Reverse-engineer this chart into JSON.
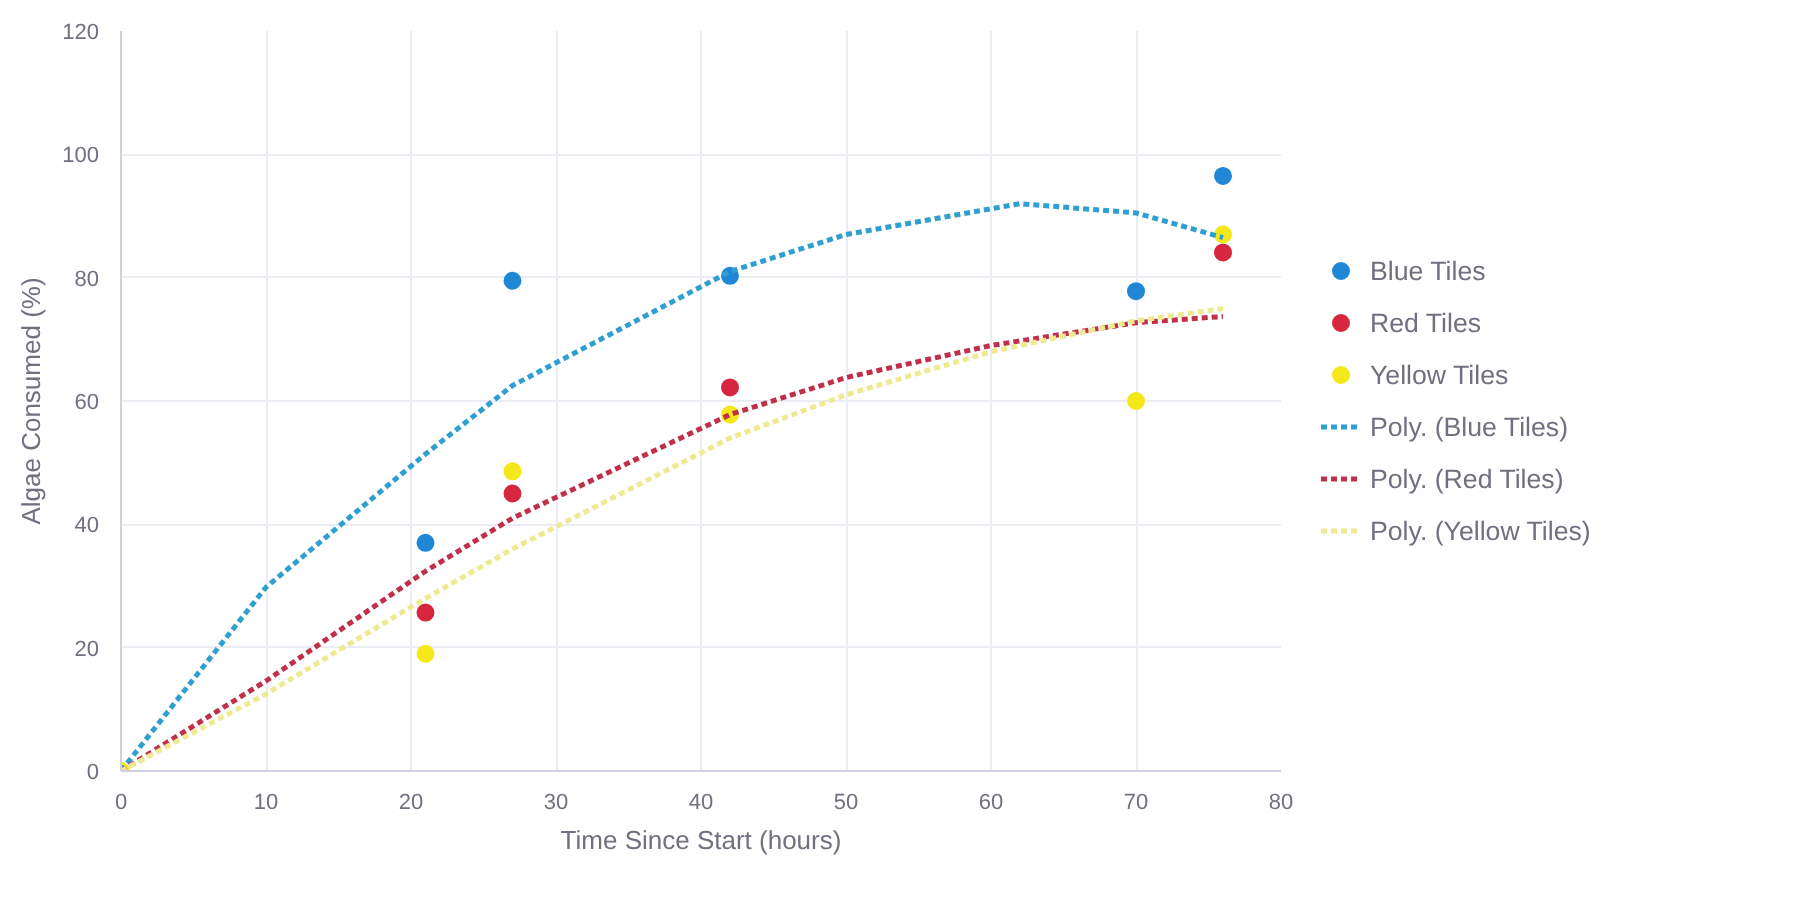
{
  "chart_data": {
    "type": "scatter",
    "xlabel": "Time Since Start (hours)",
    "ylabel": "Algae Consumed (%)",
    "xlim": [
      0,
      80
    ],
    "ylim": [
      0,
      120
    ],
    "xticks": [
      0,
      10,
      20,
      30,
      40,
      50,
      60,
      70,
      80
    ],
    "yticks": [
      0,
      20,
      40,
      60,
      80,
      100,
      120
    ],
    "grid": true,
    "legend": "right",
    "x": [
      0,
      21,
      27,
      42,
      70,
      76
    ],
    "series": [
      {
        "name": "Blue Tiles",
        "marker": "circle",
        "color": "#1f87d6",
        "values": [
          null,
          37,
          79.5,
          80.3,
          77.8,
          96.5
        ]
      },
      {
        "name": "Red Tiles",
        "marker": "circle",
        "color": "#d6273f",
        "values": [
          null,
          25.7,
          45,
          62.2,
          null,
          84.1
        ]
      },
      {
        "name": "Yellow Tiles",
        "marker": "circle",
        "color": "#f5e81a",
        "values": [
          0,
          19,
          48.6,
          57.8,
          60,
          87
        ]
      },
      {
        "name": "Poly. (Blue Tiles)",
        "type": "line",
        "line_style": "dotted",
        "color": "#2e9fd0",
        "x": [
          0,
          10,
          21,
          27,
          42,
          50,
          62,
          70,
          76
        ],
        "values": [
          0,
          29.8,
          51.4,
          62.5,
          81,
          87,
          92,
          90.5,
          86.5
        ]
      },
      {
        "name": "Poly. (Red Tiles)",
        "type": "line",
        "line_style": "dotted",
        "color": "#c0304a",
        "x": [
          0,
          10,
          21,
          27,
          42,
          50,
          60,
          70,
          76
        ],
        "values": [
          0,
          14.6,
          32.4,
          41,
          57.8,
          63.8,
          69,
          72.7,
          73.7
        ]
      },
      {
        "name": "Poly. (Yellow Tiles)",
        "type": "line",
        "line_style": "dotted",
        "color": "#eeea90",
        "x": [
          0,
          10,
          21,
          27,
          42,
          50,
          60,
          70,
          76
        ],
        "values": [
          0,
          12.5,
          28,
          36,
          54,
          61,
          68,
          73,
          75
        ]
      }
    ]
  }
}
